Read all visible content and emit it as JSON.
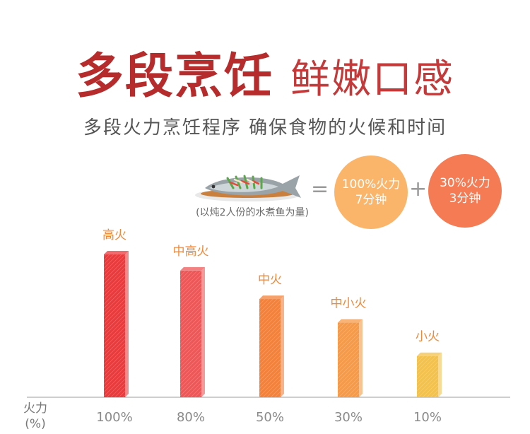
{
  "header": {
    "title_main": "多段烹饪",
    "title_sub": "鲜嫩口感",
    "subtitle": "多段火力烹饪程序 确保食物的火候和时间"
  },
  "example": {
    "dish_icon": "steamed-fish-icon",
    "caption": "(以炖2人份的水煮鱼为量)",
    "equals": "=",
    "plus": "+",
    "step1": {
      "line1": "100%火力",
      "line2": "7分钟",
      "color": "#fbb56a"
    },
    "step2": {
      "line1": "30%火力",
      "line2": "3分钟",
      "color": "#f47b54"
    }
  },
  "chart_data": {
    "type": "bar",
    "categories": [
      "100%",
      "80%",
      "50%",
      "30%",
      "10%"
    ],
    "values": [
      100,
      80,
      50,
      30,
      10
    ],
    "data_labels": [
      "高火",
      "中高火",
      "中火",
      "中小火",
      "小火"
    ],
    "colors": [
      "#e93a3c",
      "#ee5757",
      "#f3813a",
      "#f59a48",
      "#f3c24c"
    ],
    "label_color": "#f0883a",
    "ylabel_line1": "火力",
    "ylabel_line2": "(%)",
    "grid": false
  }
}
